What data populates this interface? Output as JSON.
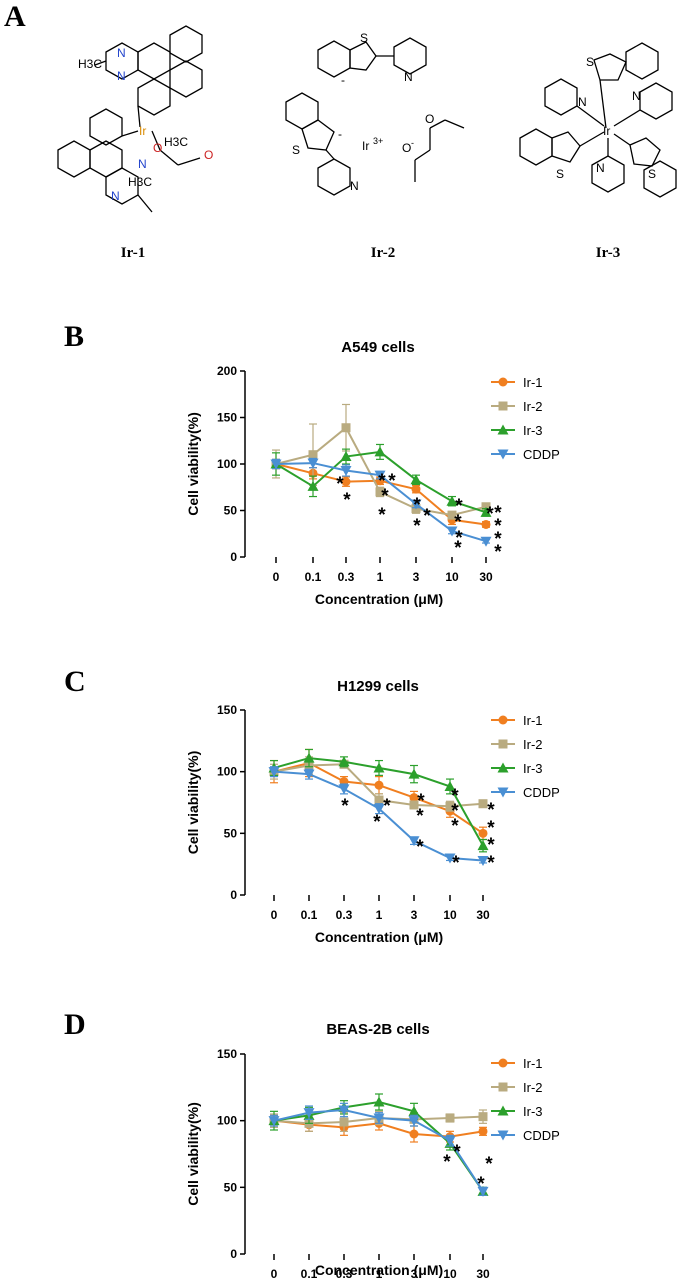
{
  "panels": [
    {
      "letter": "A"
    },
    {
      "letter": "B"
    },
    {
      "letter": "C"
    },
    {
      "letter": "D"
    }
  ],
  "compounds": [
    {
      "label": "Ir-1"
    },
    {
      "label": "Ir-2"
    },
    {
      "label": "Ir-3"
    }
  ],
  "structure_text": {
    "ir1": {
      "methyl_top": "H3C",
      "n1": "N",
      "n2": "N",
      "metal": "Ir",
      "o_bridge": "O",
      "acac_methyl": "H3C",
      "ketone_o": "O",
      "n3": "N",
      "h3c_low": "H3C",
      "n4": "N"
    },
    "ir2": {
      "s_top": "S",
      "minus_top": "-",
      "n_top": "N",
      "s_left": "S",
      "minus_left": "-",
      "n_left": "N",
      "metal": "Ir",
      "metal_charge": "3+",
      "o_ketone": "O",
      "o_minus": "O",
      "minus_o": "-"
    },
    "ir3": {
      "s1": "S",
      "n1": "N",
      "n2": "N",
      "metal": "Ir",
      "s2": "S",
      "n3": "N",
      "s3": "S"
    }
  },
  "colors": {
    "Ir-1": "#f07f20",
    "Ir-2": "#b9ab80",
    "Ir-3": "#2ca02c",
    "CDDP": "#4a8fd3"
  },
  "chart_data": [
    {
      "type": "line",
      "title": "A549 cells",
      "xlabel": "Concentration (μM)",
      "ylabel": "Cell viability(%)",
      "categories": [
        "0",
        "0.1",
        "0.3",
        "1",
        "3",
        "10",
        "30"
      ],
      "yticks": [
        "0",
        "50",
        "100",
        "150",
        "200"
      ],
      "ylim": [
        0,
        200
      ],
      "legend_position": "top-right",
      "series": [
        {
          "name": "Ir-1",
          "marker": "circle",
          "values": [
            100,
            90,
            81,
            82,
            73,
            40,
            35
          ],
          "errors": [
            5,
            6,
            5,
            4,
            4,
            5,
            3
          ]
        },
        {
          "name": "Ir-2",
          "marker": "square",
          "values": [
            100,
            110,
            139,
            70,
            52,
            45,
            54
          ],
          "errors": [
            15,
            33,
            25,
            5,
            5,
            4,
            4
          ]
        },
        {
          "name": "Ir-3",
          "marker": "triangle-up",
          "values": [
            100,
            76,
            108,
            113,
            83,
            60,
            48
          ],
          "errors": [
            12,
            11,
            8,
            8,
            5,
            5,
            4
          ]
        },
        {
          "name": "CDDP",
          "marker": "triangle-down",
          "values": [
            100,
            101,
            93,
            88,
            57,
            28,
            17
          ],
          "errors": [
            5,
            5,
            6,
            4,
            4,
            3,
            2
          ]
        }
      ],
      "significance_labels": [
        "*",
        "*",
        "*",
        "*",
        "*",
        "*",
        "*",
        "*",
        "*",
        "*",
        "*",
        "*",
        "*",
        "*",
        "*",
        "*"
      ]
    },
    {
      "type": "line",
      "title": "H1299 cells",
      "xlabel": "Concentration (μM)",
      "ylabel": "Cell viability(%)",
      "categories": [
        "0",
        "0.1",
        "0.3",
        "1",
        "3",
        "10",
        "30"
      ],
      "yticks": [
        "0",
        "50",
        "100",
        "150"
      ],
      "ylim": [
        0,
        150
      ],
      "legend_position": "top-right",
      "series": [
        {
          "name": "Ir-1",
          "marker": "circle",
          "values": [
            100,
            107,
            92,
            89,
            79,
            68,
            50
          ],
          "errors": [
            9,
            11,
            4,
            7,
            5,
            5,
            5
          ]
        },
        {
          "name": "Ir-2",
          "marker": "square",
          "values": [
            100,
            105,
            106,
            77,
            73,
            72,
            74
          ],
          "errors": [
            6,
            7,
            3,
            5,
            3,
            4,
            3
          ]
        },
        {
          "name": "Ir-3",
          "marker": "triangle-up",
          "values": [
            103,
            111,
            108,
            103,
            98,
            88,
            40
          ],
          "errors": [
            6,
            7,
            4,
            6,
            7,
            6,
            5
          ]
        },
        {
          "name": "CDDP",
          "marker": "triangle-down",
          "values": [
            100,
            98,
            86,
            70,
            44,
            30,
            28
          ],
          "errors": [
            4,
            4,
            4,
            4,
            3,
            2,
            2
          ]
        }
      ],
      "significance_labels": [
        "*",
        "*",
        "*",
        "*",
        "*",
        "*",
        "*",
        "*",
        "*",
        "*",
        "*",
        "*",
        "*",
        "*",
        "*",
        "*"
      ]
    },
    {
      "type": "line",
      "title": "BEAS-2B cells",
      "xlabel": "Concentration (μM)",
      "ylabel": "Cell viability(%)",
      "categories": [
        "0",
        "0.1",
        "0.3",
        "1",
        "3",
        "10",
        "30"
      ],
      "yticks": [
        "0",
        "50",
        "100",
        "150"
      ],
      "ylim": [
        0,
        150
      ],
      "legend_position": "top-right",
      "series": [
        {
          "name": "Ir-1",
          "marker": "circle",
          "values": [
            100,
            97,
            95,
            98,
            90,
            88,
            92
          ],
          "errors": [
            4,
            5,
            6,
            5,
            6,
            4,
            3
          ]
        },
        {
          "name": "Ir-2",
          "marker": "square",
          "values": [
            100,
            98,
            99,
            102,
            101,
            102,
            103
          ],
          "errors": [
            5,
            6,
            7,
            5,
            5,
            3,
            5
          ]
        },
        {
          "name": "Ir-3",
          "marker": "triangle-up",
          "values": [
            100,
            104,
            110,
            114,
            107,
            83,
            47
          ],
          "errors": [
            7,
            6,
            5,
            6,
            6,
            5,
            3
          ]
        },
        {
          "name": "CDDP",
          "marker": "triangle-down",
          "values": [
            100,
            106,
            108,
            102,
            100,
            85,
            47
          ],
          "errors": [
            4,
            5,
            5,
            4,
            4,
            4,
            3
          ]
        }
      ],
      "significance_labels": [
        "*",
        "*",
        "*",
        "*"
      ]
    }
  ]
}
